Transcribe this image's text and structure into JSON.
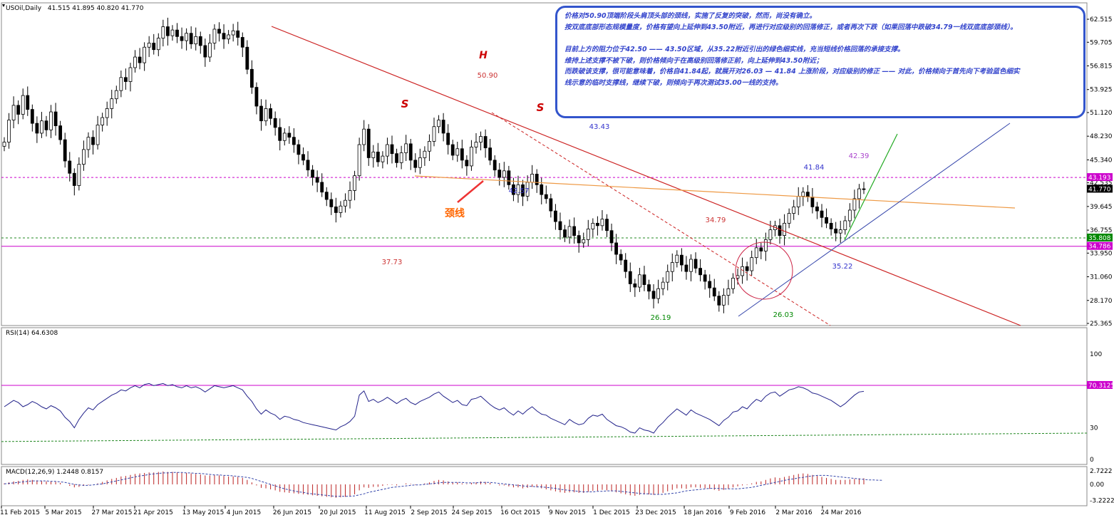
{
  "chart_data": [
    {
      "type": "candlestick",
      "title": "USOil,Daily",
      "ohlc": "41.515 41.895 40.820 41.770",
      "x_tick_labels": [
        "11 Feb 2015",
        "5 Mar 2015",
        "27 Mar 2015",
        "21 Apr 2015",
        "13 May 2015",
        "4 Jun 2015",
        "26 Jun 2015",
        "20 Jul 2015",
        "11 Aug 2015",
        "2 Sep 2015",
        "24 Sep 2015",
        "16 Oct 2015",
        "9 Nov 2015",
        "1 Dec 2015",
        "23 Dec 2015",
        "18 Jan 2016",
        "9 Feb 2016",
        "2 Mar 2016",
        "24 Mar 2016"
      ],
      "y_tick_labels": [
        "62.515",
        "59.705",
        "56.815",
        "53.925",
        "51.120",
        "48.230",
        "45.340",
        "42.535",
        "39.645",
        "36.755",
        "33.950",
        "31.060",
        "28.170",
        "25.365"
      ],
      "ylim": [
        25.365,
        63.8
      ],
      "price_tags": [
        {
          "label": "43.193",
          "value": 43.193,
          "color": "#cc00cc"
        },
        {
          "label": "41.770",
          "value": 41.77,
          "color": "#000000"
        },
        {
          "label": "35.808",
          "value": 35.808,
          "color": "#008800"
        },
        {
          "label": "34.786",
          "value": 34.786,
          "color": "#cc00cc"
        }
      ],
      "closes": [
        47.5,
        50.2,
        52.0,
        50.9,
        53.2,
        51.5,
        49.8,
        48.6,
        50.1,
        49.0,
        51.2,
        49.5,
        47.8,
        45.2,
        43.7,
        42.2,
        44.8,
        46.6,
        48.1,
        47.2,
        49.6,
        50.5,
        51.6,
        52.8,
        53.8,
        55.4,
        54.9,
        56.6,
        57.9,
        57.2,
        59.1,
        59.6,
        58.8,
        60.2,
        61.6,
        60.5,
        61.2,
        60.4,
        59.9,
        60.8,
        59.5,
        60.4,
        59.3,
        57.9,
        59.6,
        61.3,
        60.8,
        60.1,
        60.6,
        61.1,
        60.3,
        59.1,
        56.4,
        54.2,
        51.9,
        50.1,
        51.6,
        50.4,
        49.3,
        47.7,
        48.6,
        48.1,
        47.2,
        46.0,
        45.3,
        44.1,
        43.2,
        42.6,
        41.4,
        40.5,
        39.6,
        38.9,
        39.7,
        40.4,
        41.6,
        43.4,
        47.2,
        49.1,
        45.6,
        46.3,
        45.1,
        45.8,
        47.2,
        46.1,
        45.0,
        46.2,
        47.3,
        45.3,
        44.4,
        45.6,
        46.4,
        47.6,
        49.4,
        50.2,
        48.6,
        47.2,
        45.9,
        46.7,
        45.3,
        44.6,
        46.9,
        47.5,
        48.2,
        46.8,
        45.3,
        44.1,
        43.2,
        44.0,
        42.3,
        41.1,
        42.3,
        40.9,
        42.6,
        43.6,
        42.3,
        41.1,
        40.6,
        39.1,
        37.8,
        36.8,
        35.9,
        37.2,
        36.1,
        35.2,
        35.6,
        36.9,
        37.6,
        37.3,
        38.1,
        36.7,
        35.2,
        33.8,
        33.1,
        31.7,
        30.2,
        29.8,
        31.3,
        30.1,
        29.3,
        28.4,
        29.6,
        30.4,
        31.7,
        32.8,
        33.7,
        32.5,
        31.7,
        33.2,
        32.1,
        31.3,
        30.5,
        29.7,
        28.7,
        27.6,
        28.8,
        29.6,
        30.9,
        31.2,
        32.3,
        31.8,
        33.4,
        34.6,
        34.2,
        35.6,
        36.8,
        37.3,
        36.1,
        37.6,
        38.8,
        39.6,
        40.9,
        41.4,
        40.8,
        39.6,
        39.1,
        38.3,
        37.6,
        36.9,
        36.4,
        36.8,
        37.9,
        39.2,
        40.6,
        41.8,
        41.77
      ],
      "annotations": [
        {
          "text": "H",
          "color": "#cc0000"
        },
        {
          "text": "50.90",
          "color": "#cc3333"
        },
        {
          "text": "S",
          "color": "#cc0000"
        },
        {
          "text": "S",
          "color": "#cc0000"
        },
        {
          "text": "43.43",
          "color": "#3333cc"
        },
        {
          "text": "42.57",
          "color": "#3333cc"
        },
        {
          "text": "37.73",
          "color": "#cc3333"
        },
        {
          "text": "34.79",
          "color": "#cc3333"
        },
        {
          "text": "41.84",
          "color": "#3333cc"
        },
        {
          "text": "42.39",
          "color": "#aa44cc"
        },
        {
          "text": "35.22",
          "color": "#3333cc"
        },
        {
          "text": "26.19",
          "color": "#008800"
        },
        {
          "text": "26.03",
          "color": "#008800"
        },
        {
          "text": "颈线",
          "color": "#ff6600"
        }
      ],
      "notes": [
        "价格对50.90顶端阶段头肩顶头部的颈线，实施了反复的突破，然而，尚没有确立。",
        "按双底底部形态规模量度，价格有望向上延伸到43.50附近，再进行对应级别的回落修正，或者再次下跌（如果回落中跌破34.79一线双底底部颈线）。",
        "",
        "目前上方的阻力位于42.50 —— 43.50区域，从35.22附近引出的绿色细实线，充当短线价格回落的承接支撑。",
        "维持上述支撑不被下破，则价格倾向于在高级别回落修正前，向上延伸到43.50附近；",
        "而跌破该支撑，很可能意味着，价格自41.84起，就展开对26.03 — 41.84 上涨阶段，对应级别的修正 —— 对此，价格倾向于首先向下考验蓝色细实",
        "线示意的临时支撑线，继续下破，则倾向于再次测试35.00一线的支持。"
      ]
    },
    {
      "type": "line",
      "title": "RSI(14) 64.6308",
      "y_tick_labels": [
        "100",
        "70",
        "30",
        "0"
      ],
      "ylim": [
        0,
        100
      ],
      "levels": [
        {
          "label": "70.3125",
          "value": 70.3125,
          "color": "#cc00cc"
        }
      ],
      "values": [
        50,
        53,
        56,
        54,
        50,
        52,
        55,
        53,
        50,
        48,
        51,
        49,
        46,
        40,
        36,
        30,
        38,
        44,
        49,
        47,
        52,
        55,
        58,
        61,
        63,
        66,
        65,
        68,
        70,
        68,
        71,
        72,
        70,
        71,
        72,
        70,
        71,
        69,
        68,
        70,
        68,
        69,
        67,
        64,
        67,
        70,
        69,
        68,
        69,
        70,
        68,
        66,
        60,
        55,
        48,
        43,
        47,
        44,
        42,
        38,
        41,
        40,
        38,
        37,
        35,
        34,
        33,
        32,
        31,
        30,
        29,
        28,
        31,
        33,
        36,
        41,
        61,
        65,
        55,
        57,
        54,
        56,
        59,
        56,
        53,
        56,
        58,
        54,
        52,
        55,
        57,
        59,
        62,
        64,
        60,
        57,
        54,
        56,
        52,
        51,
        57,
        58,
        60,
        56,
        52,
        49,
        47,
        49,
        45,
        42,
        46,
        43,
        47,
        50,
        46,
        43,
        42,
        39,
        37,
        35,
        33,
        38,
        35,
        33,
        34,
        39,
        42,
        41,
        43,
        38,
        35,
        32,
        31,
        29,
        26,
        25,
        30,
        28,
        27,
        25,
        31,
        35,
        40,
        44,
        48,
        45,
        42,
        47,
        44,
        42,
        40,
        38,
        35,
        32,
        37,
        40,
        45,
        46,
        50,
        48,
        53,
        57,
        55,
        60,
        63,
        64,
        60,
        63,
        66,
        67,
        69,
        68,
        66,
        63,
        62,
        60,
        58,
        56,
        53,
        50,
        53,
        57,
        61,
        64,
        64.6
      ]
    },
    {
      "type": "bar",
      "title": "MACD(12,26,9) 1.2448 0.8157",
      "y_tick_labels": [
        "2.7222",
        "0.00",
        "-3.2222"
      ],
      "ylim": [
        -3.2222,
        2.7222
      ],
      "hist": [
        0.2,
        0.4,
        0.6,
        0.7,
        0.9,
        1.0,
        0.9,
        0.8,
        0.7,
        0.6,
        0.6,
        0.5,
        0.3,
        0.0,
        -0.3,
        -0.6,
        -0.5,
        -0.3,
        -0.1,
        0.0,
        0.2,
        0.5,
        0.8,
        1.1,
        1.3,
        1.6,
        1.7,
        1.9,
        2.1,
        2.2,
        2.3,
        2.4,
        2.4,
        2.5,
        2.6,
        2.5,
        2.5,
        2.4,
        2.3,
        2.3,
        2.2,
        2.1,
        2.0,
        1.8,
        1.8,
        1.9,
        1.8,
        1.7,
        1.6,
        1.6,
        1.5,
        1.3,
        0.9,
        0.4,
        -0.2,
        -0.7,
        -0.8,
        -1.0,
        -1.2,
        -1.5,
        -1.6,
        -1.7,
        -1.8,
        -1.9,
        -2.0,
        -2.1,
        -2.2,
        -2.3,
        -2.4,
        -2.5,
        -2.6,
        -2.7,
        -2.6,
        -2.5,
        -2.3,
        -2.0,
        -1.2,
        -0.6,
        -0.7,
        -0.5,
        -0.5,
        -0.3,
        -0.1,
        -0.1,
        -0.2,
        0.0,
        0.2,
        0.1,
        -0.1,
        0.0,
        0.2,
        0.4,
        0.7,
        0.9,
        0.8,
        0.6,
        0.4,
        0.4,
        0.2,
        0.1,
        0.3,
        0.4,
        0.6,
        0.5,
        0.3,
        0.0,
        -0.2,
        -0.2,
        -0.4,
        -0.6,
        -0.6,
        -0.8,
        -0.7,
        -0.5,
        -0.6,
        -0.8,
        -1.0,
        -1.2,
        -1.4,
        -1.6,
        -1.7,
        -1.6,
        -1.6,
        -1.7,
        -1.7,
        -1.5,
        -1.3,
        -1.3,
        -1.1,
        -1.2,
        -1.4,
        -1.6,
        -1.8,
        -2.0,
        -2.2,
        -2.3,
        -2.1,
        -2.0,
        -2.0,
        -2.1,
        -1.9,
        -1.7,
        -1.4,
        -1.1,
        -0.8,
        -0.8,
        -0.9,
        -0.6,
        -0.6,
        -0.7,
        -0.8,
        -0.9,
        -1.1,
        -1.3,
        -1.1,
        -0.9,
        -0.6,
        -0.4,
        -0.2,
        -0.1,
        0.2,
        0.5,
        0.6,
        0.9,
        1.2,
        1.4,
        1.3,
        1.5,
        1.7,
        1.9,
        2.1,
        2.2,
        2.1,
        1.9,
        1.7,
        1.5,
        1.3,
        1.1,
        0.9,
        0.9,
        0.9,
        1.0,
        1.1,
        1.2,
        1.24
      ],
      "signal": [
        0.1,
        0.2,
        0.3,
        0.4,
        0.5,
        0.6,
        0.7,
        0.7,
        0.7,
        0.7,
        0.6,
        0.6,
        0.5,
        0.4,
        0.2,
        0.0,
        -0.1,
        -0.2,
        -0.2,
        -0.1,
        0.0,
        0.1,
        0.3,
        0.5,
        0.7,
        0.9,
        1.1,
        1.3,
        1.5,
        1.7,
        1.8,
        2.0,
        2.1,
        2.2,
        2.3,
        2.3,
        2.4,
        2.4,
        2.4,
        2.3,
        2.3,
        2.2,
        2.2,
        2.1,
        2.0,
        1.9,
        1.9,
        1.8,
        1.8,
        1.7,
        1.6,
        1.5,
        1.4,
        1.2,
        0.9,
        0.6,
        0.3,
        0.0,
        -0.3,
        -0.6,
        -0.9,
        -1.1,
        -1.3,
        -1.5,
        -1.6,
        -1.8,
        -1.9,
        -2.0,
        -2.1,
        -2.2,
        -2.3,
        -2.4,
        -2.4,
        -2.4,
        -2.4,
        -2.3,
        -2.1,
        -1.9,
        -1.6,
        -1.4,
        -1.2,
        -1.0,
        -0.8,
        -0.6,
        -0.5,
        -0.4,
        -0.3,
        -0.2,
        -0.1,
        -0.1,
        0.0,
        0.1,
        0.2,
        0.3,
        0.4,
        0.4,
        0.4,
        0.4,
        0.4,
        0.3,
        0.3,
        0.3,
        0.4,
        0.4,
        0.4,
        0.3,
        0.2,
        0.1,
        0.0,
        -0.1,
        -0.2,
        -0.3,
        -0.4,
        -0.4,
        -0.5,
        -0.5,
        -0.6,
        -0.7,
        -0.8,
        -1.0,
        -1.1,
        -1.2,
        -1.3,
        -1.4,
        -1.5,
        -1.5,
        -1.5,
        -1.4,
        -1.4,
        -1.3,
        -1.3,
        -1.3,
        -1.4,
        -1.5,
        -1.6,
        -1.7,
        -1.8,
        -1.9,
        -1.9,
        -2.0,
        -2.0,
        -2.0,
        -1.9,
        -1.8,
        -1.7,
        -1.5,
        -1.3,
        -1.2,
        -1.1,
        -1.0,
        -0.9,
        -0.8,
        -0.8,
        -0.8,
        -0.9,
        -0.9,
        -0.9,
        -0.9,
        -0.8,
        -0.7,
        -0.6,
        -0.4,
        -0.2,
        0.0,
        0.2,
        0.4,
        0.6,
        0.8,
        1.0,
        1.1,
        1.3,
        1.4,
        1.6,
        1.7,
        1.8,
        1.8,
        1.8,
        1.7,
        1.6,
        1.5,
        1.4,
        1.3,
        1.2,
        1.1,
        1.0,
        0.9,
        0.9,
        0.85,
        0.8157
      ]
    }
  ]
}
